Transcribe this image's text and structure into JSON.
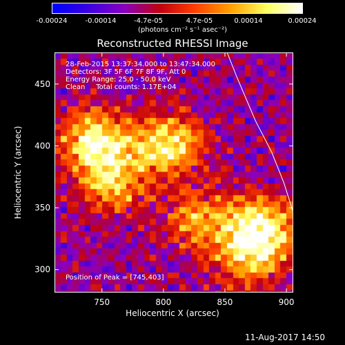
{
  "colorbar": {
    "ticks": [
      "-0.00024",
      "-0.00014",
      "-4.7e-05",
      "4.7e-05",
      "0.00014",
      "0.00024"
    ],
    "unit": "(photons cm⁻² s⁻¹ asec⁻²)",
    "range": [
      -0.00024,
      0.00024
    ],
    "gradient": [
      "#0000ff",
      "#3c00e0",
      "#8a00c0",
      "#c00010",
      "#ff4000",
      "#ffa000",
      "#ffff60",
      "#ffffff"
    ]
  },
  "chart_data": {
    "type": "heatmap",
    "title": "Reconstructed RHESSI Image",
    "xlabel": "Heliocentric X (arcsec)",
    "ylabel": "Heliocentric Y (arcsec)",
    "xlim": [
      712,
      905
    ],
    "ylim": [
      282,
      475
    ],
    "xticks": [
      750,
      800,
      850,
      900
    ],
    "yticks": [
      300,
      350,
      400,
      450
    ],
    "annotations": [
      "28-Feb-2015 13:37:34.000 to 13:47:34.000",
      "Detectors: 3F 5F 6F 7F 8F 9F, Att 0",
      "Energy Range: 25.0 - 50.0 keV",
      "Clean     Total counts: 1.17E+04"
    ],
    "peak_label": "Position of Peak = [745,403]",
    "peak_position": [
      745,
      403
    ],
    "bright_regions": [
      {
        "x": 745,
        "y": 403,
        "level": 1.0
      },
      {
        "x": 760,
        "y": 370,
        "level": 0.7
      },
      {
        "x": 805,
        "y": 400,
        "level": 0.9
      },
      {
        "x": 830,
        "y": 340,
        "level": 0.6
      },
      {
        "x": 880,
        "y": 335,
        "level": 0.9
      },
      {
        "x": 870,
        "y": 310,
        "level": 0.7
      }
    ],
    "limb_curve": [
      [
        852,
        475
      ],
      [
        860,
        455
      ],
      [
        875,
        420
      ],
      [
        888,
        395
      ],
      [
        898,
        370
      ],
      [
        905,
        348
      ]
    ]
  },
  "footer": "11-Aug-2017 14:50"
}
